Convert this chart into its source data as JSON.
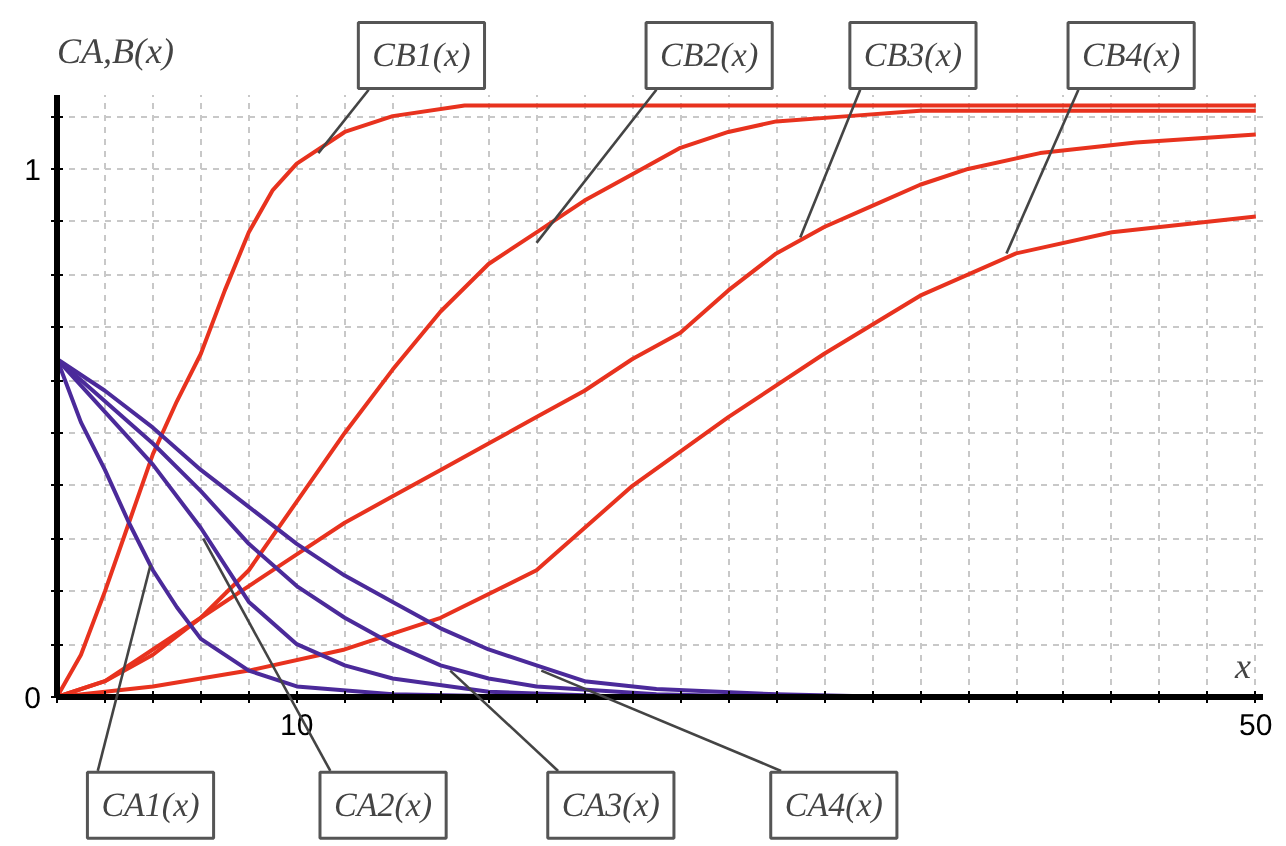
{
  "chart_data": {
    "type": "line",
    "xlabel": "x",
    "ylabel": "CA,B(x)",
    "xlim": [
      0,
      50.3
    ],
    "ylim": [
      0,
      1.14
    ],
    "xticks": [
      {
        "value": 0,
        "label": null
      },
      {
        "value": 2,
        "label": null
      },
      {
        "value": 4,
        "label": null
      },
      {
        "value": 6,
        "label": null
      },
      {
        "value": 8,
        "label": null
      },
      10,
      {
        "value": 12,
        "label": null
      },
      {
        "value": 14,
        "label": null
      },
      {
        "value": 16,
        "label": null
      },
      {
        "value": 18,
        "label": null
      },
      {
        "value": 20,
        "label": null
      },
      {
        "value": 22,
        "label": null
      },
      {
        "value": 24,
        "label": null
      },
      {
        "value": 26,
        "label": null
      },
      {
        "value": 28,
        "label": null
      },
      {
        "value": 30,
        "label": null
      },
      {
        "value": 32,
        "label": null
      },
      {
        "value": 34,
        "label": null
      },
      {
        "value": 36,
        "label": null
      },
      {
        "value": 38,
        "label": null
      },
      {
        "value": 40,
        "label": null
      },
      {
        "value": 42,
        "label": null
      },
      {
        "value": 44,
        "label": null
      },
      {
        "value": 46,
        "label": null
      },
      {
        "value": 48,
        "label": null
      },
      50
    ],
    "yticks": [
      0,
      {
        "value": 0.1,
        "label": null
      },
      {
        "value": 0.2,
        "label": null
      },
      {
        "value": 0.3,
        "label": null
      },
      {
        "value": 0.4,
        "label": null
      },
      {
        "value": 0.5,
        "label": null
      },
      {
        "value": 0.6,
        "label": null
      },
      {
        "value": 0.7,
        "label": null
      },
      {
        "value": 0.8,
        "label": null
      },
      {
        "value": 0.9,
        "label": null
      },
      1,
      {
        "value": 1.1,
        "label": null
      }
    ],
    "grid": true,
    "line_style": "solid",
    "marker": "none",
    "series": [
      {
        "color": "#e8321e",
        "x": [
          0,
          1,
          2,
          3,
          4,
          5,
          6,
          7,
          8,
          9,
          10,
          12,
          14,
          17,
          20,
          30,
          40,
          50
        ],
        "values": [
          0,
          0.08,
          0.2,
          0.33,
          0.46,
          0.56,
          0.65,
          0.77,
          0.88,
          0.96,
          1.01,
          1.07,
          1.1,
          1.12,
          1.12,
          1.12,
          1.12,
          1.12
        ]
      },
      {
        "color": "#e8321e",
        "x": [
          0,
          2,
          4,
          6,
          8,
          10,
          12,
          14,
          16,
          18,
          20,
          22,
          24,
          26,
          28,
          30,
          33,
          36,
          40,
          50
        ],
        "values": [
          0,
          0.03,
          0.08,
          0.15,
          0.24,
          0.37,
          0.5,
          0.62,
          0.73,
          0.82,
          0.88,
          0.94,
          0.99,
          1.04,
          1.07,
          1.09,
          1.1,
          1.11,
          1.11,
          1.11
        ]
      },
      {
        "color": "#e8321e",
        "x": [
          0,
          2,
          4,
          6,
          8,
          10,
          12,
          14,
          16,
          18,
          20,
          22,
          24,
          26,
          28,
          30,
          32,
          34,
          36,
          38,
          41,
          45,
          50
        ],
        "values": [
          0,
          0.03,
          0.09,
          0.15,
          0.21,
          0.27,
          0.33,
          0.38,
          0.43,
          0.48,
          0.53,
          0.58,
          0.64,
          0.69,
          0.77,
          0.84,
          0.89,
          0.93,
          0.97,
          1.0,
          1.03,
          1.05,
          1.065
        ]
      },
      {
        "color": "#e8321e",
        "x": [
          0,
          4,
          8,
          12,
          16,
          20,
          24,
          28,
          32,
          36,
          40,
          44,
          50
        ],
        "values": [
          0,
          0.02,
          0.05,
          0.09,
          0.15,
          0.24,
          0.4,
          0.53,
          0.65,
          0.76,
          0.84,
          0.88,
          0.91
        ]
      },
      {
        "color": "#4b2a9a",
        "x": [
          0,
          1,
          2,
          3,
          4,
          5,
          6,
          8,
          10,
          14,
          20,
          26
        ],
        "values": [
          0.64,
          0.52,
          0.43,
          0.33,
          0.24,
          0.17,
          0.11,
          0.05,
          0.02,
          0.005,
          0,
          0
        ]
      },
      {
        "color": "#4b2a9a",
        "x": [
          0,
          2,
          4,
          6,
          8,
          10,
          12,
          14,
          18,
          24,
          30
        ],
        "values": [
          0.64,
          0.54,
          0.44,
          0.32,
          0.18,
          0.1,
          0.06,
          0.035,
          0.01,
          0,
          0
        ]
      },
      {
        "color": "#4b2a9a",
        "x": [
          0,
          2,
          4,
          6,
          8,
          10,
          12,
          14,
          16,
          18,
          20,
          25,
          30,
          34
        ],
        "values": [
          0.64,
          0.56,
          0.48,
          0.39,
          0.29,
          0.21,
          0.15,
          0.1,
          0.06,
          0.035,
          0.02,
          0.005,
          0,
          0
        ]
      },
      {
        "color": "#4b2a9a",
        "x": [
          0,
          2,
          4,
          6,
          8,
          10,
          12,
          14,
          16,
          18,
          20,
          22,
          25,
          30,
          35,
          38
        ],
        "values": [
          0.64,
          0.58,
          0.51,
          0.43,
          0.36,
          0.29,
          0.23,
          0.18,
          0.13,
          0.09,
          0.06,
          0.03,
          0.015,
          0.005,
          0,
          0
        ]
      }
    ],
    "annotations": [
      {
        "text": "CB1(x)",
        "x": 10.9,
        "y": 1.03
      },
      {
        "text": "CB2(x)",
        "x": 20,
        "y": 0.86
      },
      {
        "text": "CB3(x)",
        "x": 31,
        "y": 0.87
      },
      {
        "text": "CB4(x)",
        "x": 39.6,
        "y": 0.84
      },
      {
        "text": "CA1(x)",
        "x": 3.9,
        "y": 0.25
      },
      {
        "text": "CA2(x)",
        "x": 6.1,
        "y": 0.3
      },
      {
        "text": "CA3(x)",
        "x": 16.4,
        "y": 0.05
      },
      {
        "text": "CA4(x)",
        "x": 20.2,
        "y": 0.05
      }
    ]
  }
}
